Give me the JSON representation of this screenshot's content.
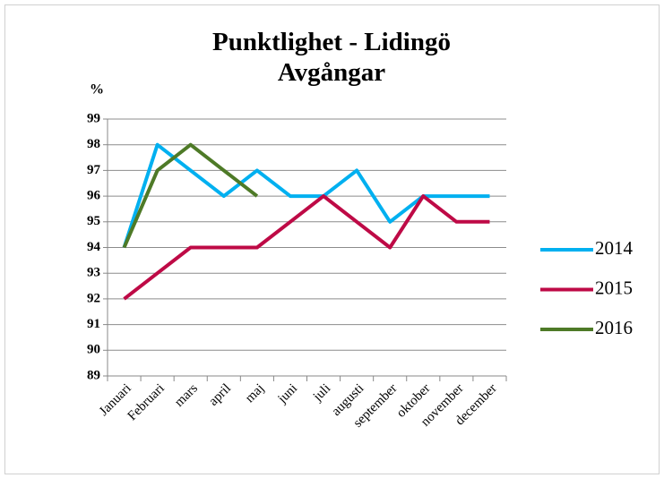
{
  "chart_data": {
    "type": "line",
    "title": "Punktlighet - Lidingö Avgångar",
    "y_label": "%",
    "categories": [
      "Januari",
      "Februari",
      "mars",
      "april",
      "maj",
      "juni",
      "juli",
      "augusti",
      "september",
      "oktober",
      "november",
      "december"
    ],
    "series": [
      {
        "name": "2014",
        "color": "#00b0f0",
        "values": [
          94,
          98,
          97,
          96,
          97,
          96,
          96,
          97,
          95,
          96,
          96,
          96
        ]
      },
      {
        "name": "2015",
        "color": "#be0a46",
        "values": [
          92,
          93,
          94,
          94,
          94,
          95,
          96,
          95,
          94,
          96,
          95,
          95
        ]
      },
      {
        "name": "2016",
        "color": "#4e7a27",
        "values": [
          94,
          97,
          98,
          97,
          96,
          null,
          null,
          null,
          null,
          null,
          null,
          null
        ]
      }
    ],
    "ylim": [
      89,
      99
    ],
    "yticks": [
      89,
      90,
      91,
      92,
      93,
      94,
      95,
      96,
      97,
      98,
      99
    ],
    "grid": true,
    "legend": "right"
  }
}
